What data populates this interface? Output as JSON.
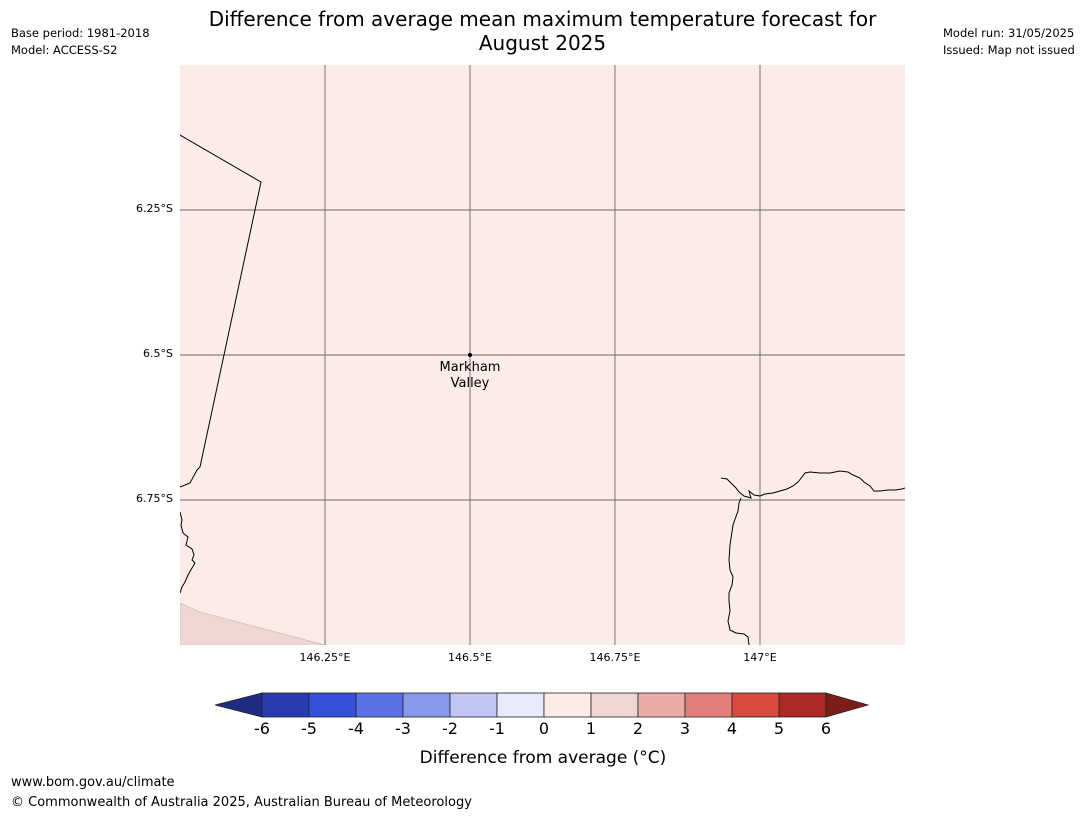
{
  "header": {
    "base_period": "Base period: 1981-2018",
    "model": "Model: ACCESS-S2",
    "model_run": "Model run: 31/05/2025",
    "issued": "Issued: Map not issued",
    "title_line1": "Difference from average mean maximum temperature forecast for",
    "title_line2": "August 2025"
  },
  "map": {
    "fill_color": "#fbebe9",
    "lat_labels": [
      "6.25°S",
      "6.5°S",
      "6.75°S"
    ],
    "lon_labels": [
      "146.25°E",
      "146.5°E",
      "146.75°E",
      "147°E"
    ],
    "location": {
      "name_line1": "Markham",
      "name_line2": "Valley"
    }
  },
  "legend": {
    "ticks": [
      "-6",
      "-5",
      "-4",
      "-3",
      "-2",
      "-1",
      "0",
      "1",
      "2",
      "3",
      "4",
      "5",
      "6"
    ],
    "colors": [
      "#1f2b85",
      "#263cb0",
      "#3450dd",
      "#5a72e6",
      "#8898ec",
      "#bfc6f4",
      "#e8eafb",
      "#fbebe9",
      "#f0d6d3",
      "#ebaca8",
      "#e37f7b",
      "#d94a40",
      "#ab2a25",
      "#7b1e1a"
    ],
    "title": "Difference from average (°C)"
  },
  "footer": {
    "url": "www.bom.gov.au/climate",
    "copyright": "© Commonwealth of Australia 2025, Australian Bureau of Meteorology"
  }
}
